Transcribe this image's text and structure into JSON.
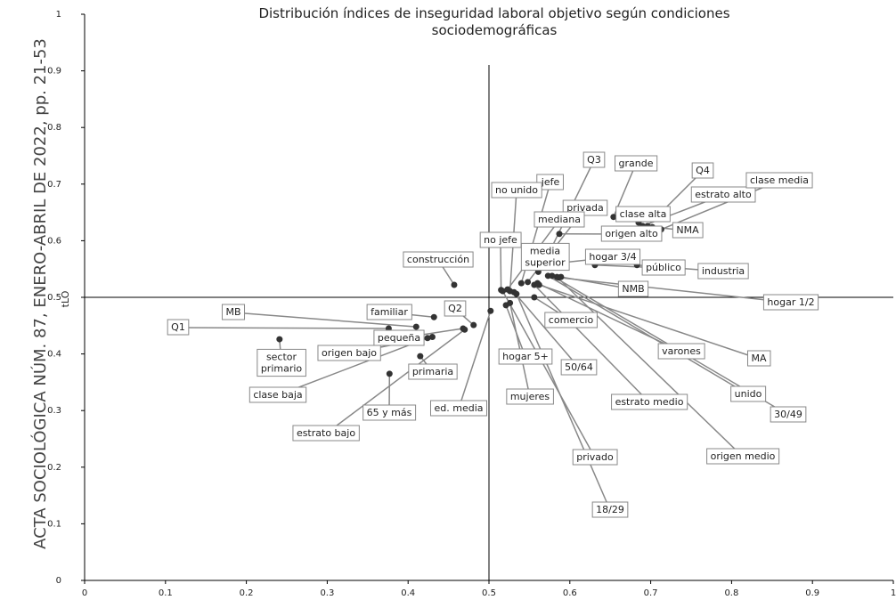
{
  "side_text": "ACTA SOCIOLÓGICA NÚM. 87, ENERO-ABRIL DE 2022, pp. 21-53",
  "chart_data": {
    "type": "scatter",
    "title": "Distribución índices de inseguridad laboral objetivo según condiciones sociodemográficas",
    "y_label": "tLO",
    "xlim": [
      0,
      1
    ],
    "ylim": [
      0,
      1
    ],
    "xticks": [
      0,
      0.1,
      0.2,
      0.3,
      0.4,
      0.5,
      0.6,
      0.7,
      0.8,
      0.9,
      1
    ],
    "yticks": [
      0,
      0.1,
      0.2,
      0.3,
      0.4,
      0.5,
      0.6,
      0.7,
      0.8,
      0.9,
      1
    ],
    "reference_lines": {
      "x": 0.5,
      "y": 0.5
    },
    "color": "#333333",
    "points": [
      {
        "label": "Q1",
        "x": 0.376,
        "y": 0.445
      },
      {
        "label": "MB",
        "x": 0.41,
        "y": 0.448
      },
      {
        "label": "familiar",
        "x": 0.432,
        "y": 0.465
      },
      {
        "label": "Q2",
        "x": 0.481,
        "y": 0.451
      },
      {
        "label": "pequeña",
        "x": 0.468,
        "y": 0.445
      },
      {
        "label": "sector primario",
        "x": 0.241,
        "y": 0.426
      },
      {
        "label": "origen bajo",
        "x": 0.43,
        "y": 0.43
      },
      {
        "label": "clase baja",
        "x": 0.424,
        "y": 0.428
      },
      {
        "label": "primaria",
        "x": 0.415,
        "y": 0.396
      },
      {
        "label": "65 y más",
        "x": 0.377,
        "y": 0.365
      },
      {
        "label": "estrato bajo",
        "x": 0.47,
        "y": 0.443
      },
      {
        "label": "ed. media",
        "x": 0.502,
        "y": 0.476
      },
      {
        "label": "construcción",
        "x": 0.457,
        "y": 0.522
      },
      {
        "label": "hogar 5+",
        "x": 0.521,
        "y": 0.486
      },
      {
        "label": "mujeres",
        "x": 0.526,
        "y": 0.49
      },
      {
        "label": "50/64",
        "x": 0.531,
        "y": 0.509
      },
      {
        "label": "comercio",
        "x": 0.556,
        "y": 0.5
      },
      {
        "label": "privado",
        "x": 0.517,
        "y": 0.511
      },
      {
        "label": "18/29",
        "x": 0.534,
        "y": 0.506
      },
      {
        "label": "estrato medio",
        "x": 0.556,
        "y": 0.522
      },
      {
        "label": "varones",
        "x": 0.56,
        "y": 0.525
      },
      {
        "label": "MA",
        "x": 0.562,
        "y": 0.522
      },
      {
        "label": "unido",
        "x": 0.573,
        "y": 0.538
      },
      {
        "label": "30/49",
        "x": 0.578,
        "y": 0.538
      },
      {
        "label": "origen medio",
        "x": 0.584,
        "y": 0.536
      },
      {
        "label": "hogar 1/2",
        "x": 0.586,
        "y": 0.535
      },
      {
        "label": "NMB",
        "x": 0.589,
        "y": 0.536
      },
      {
        "label": "industria",
        "x": 0.683,
        "y": 0.557
      },
      {
        "label": "público",
        "x": 0.631,
        "y": 0.557
      },
      {
        "label": "hogar 3/4",
        "x": 0.569,
        "y": 0.558
      },
      {
        "label": "media superior",
        "x": 0.561,
        "y": 0.545
      },
      {
        "label": "origen alto",
        "x": 0.587,
        "y": 0.612
      },
      {
        "label": "NMA",
        "x": 0.702,
        "y": 0.624
      },
      {
        "label": "clase alta",
        "x": 0.685,
        "y": 0.632
      },
      {
        "label": "Q4",
        "x": 0.696,
        "y": 0.626
      },
      {
        "label": "estrato alto",
        "x": 0.69,
        "y": 0.626
      },
      {
        "label": "clase media",
        "x": 0.713,
        "y": 0.62
      },
      {
        "label": "grande",
        "x": 0.654,
        "y": 0.642
      },
      {
        "label": "Q3",
        "x": 0.567,
        "y": 0.557
      },
      {
        "label": "jefe",
        "x": 0.54,
        "y": 0.525
      },
      {
        "label": "no unido",
        "x": 0.526,
        "y": 0.511
      },
      {
        "label": "privada",
        "x": 0.548,
        "y": 0.527
      },
      {
        "label": "mediana",
        "x": 0.523,
        "y": 0.514
      },
      {
        "label": "no jefe",
        "x": 0.515,
        "y": 0.513
      }
    ]
  }
}
